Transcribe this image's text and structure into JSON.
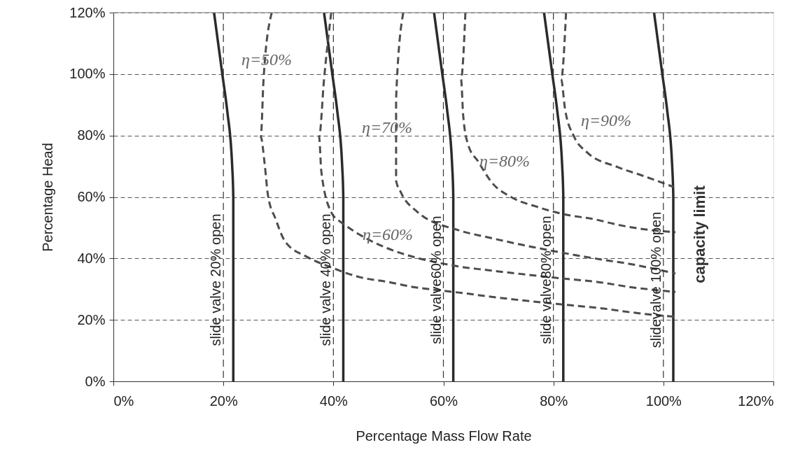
{
  "chart_data": {
    "type": "line",
    "xlabel": "Percentage Mass Flow Rate",
    "ylabel": "Percentage Head",
    "xlim": [
      0,
      120
    ],
    "ylim": [
      0,
      120
    ],
    "xticks": [
      {
        "value": 0,
        "label": "0%"
      },
      {
        "value": 20,
        "label": "20%"
      },
      {
        "value": 40,
        "label": "40%"
      },
      {
        "value": 60,
        "label": "60%"
      },
      {
        "value": 80,
        "label": "80%"
      },
      {
        "value": 100,
        "label": "100%"
      },
      {
        "value": 120,
        "label": "120%"
      }
    ],
    "yticks": [
      {
        "value": 0,
        "label": "0%"
      },
      {
        "value": 20,
        "label": "20%"
      },
      {
        "value": 40,
        "label": "40%"
      },
      {
        "value": 60,
        "label": "60%"
      },
      {
        "value": 80,
        "label": "80%"
      },
      {
        "value": 100,
        "label": "100%"
      },
      {
        "value": 120,
        "label": "120%"
      }
    ],
    "grid": "y",
    "series": [
      {
        "color": "#2b2b2b",
        "line_style": "solid",
        "x": [
          21.8,
          21.8,
          21.6,
          20.7,
          19.8,
          18.3
        ],
        "values": [
          0,
          60,
          70,
          88,
          100,
          120
        ]
      },
      {
        "color": "#2b2b2b",
        "line_style": "solid",
        "x": [
          41.8,
          41.8,
          41.6,
          40.7,
          39.8,
          38.3
        ],
        "values": [
          0,
          60,
          70,
          88,
          100,
          120
        ]
      },
      {
        "color": "#2b2b2b",
        "line_style": "solid",
        "x": [
          61.8,
          61.8,
          61.6,
          60.7,
          59.8,
          58.3
        ],
        "values": [
          0,
          60,
          70,
          88,
          100,
          120
        ]
      },
      {
        "color": "#2b2b2b",
        "line_style": "solid",
        "x": [
          81.8,
          81.8,
          81.6,
          80.7,
          79.8,
          78.3
        ],
        "values": [
          0,
          60,
          70,
          88,
          100,
          120
        ]
      },
      {
        "color": "#2b2b2b",
        "line_style": "solid",
        "x": [
          101.8,
          101.8,
          101.6,
          100.7,
          99.8,
          98.3
        ],
        "values": [
          0,
          60,
          70,
          88,
          100,
          120
        ]
      },
      {
        "color": "#4d4d4d",
        "line_style": "dashed",
        "x": [
          28.8,
          27.3,
          26.8,
          27.5,
          28.1,
          29.5,
          31.2,
          35.2,
          39.6,
          44.8,
          50.1,
          54.5,
          59.3,
          63.2,
          68.8,
          74.1,
          82.9,
          89.1,
          93.9,
          102.2
        ],
        "values": [
          120,
          98.3,
          79.5,
          70.8,
          60.6,
          52.8,
          45.6,
          40.5,
          37.1,
          33.9,
          32.3,
          30.7,
          29.6,
          28.8,
          27.5,
          26.4,
          24.8,
          23.7,
          22.5,
          21.0
        ]
      },
      {
        "color": "#4d4d4d",
        "line_style": "dashed",
        "x": [
          39.6,
          38.3,
          37.4,
          37.8,
          39.6,
          41.3,
          62.7,
          68.0,
          73.3,
          81.5,
          88.2,
          93.9,
          102.2
        ],
        "values": [
          120,
          98.3,
          79.5,
          68.4,
          55.1,
          51.9,
          37.4,
          36.2,
          35.1,
          33.5,
          32.3,
          30.7,
          29.1
        ]
      },
      {
        "color": "#4d4d4d",
        "line_style": "dashed",
        "x": [
          52.7,
          51.4,
          51.4,
          52.3,
          55.3,
          62.7,
          68.0,
          74.1,
          82.1,
          88.2,
          93.9,
          102.2
        ],
        "values": [
          120,
          92,
          65.3,
          61.4,
          55.1,
          49.2,
          46.9,
          44.5,
          41.7,
          39.8,
          38.2,
          35.1
        ]
      },
      {
        "color": "#4d4d4d",
        "line_style": "dashed",
        "x": [
          64.0,
          63.2,
          63.6,
          64.5,
          66.3,
          68.9,
          72.4,
          77.2,
          82.1,
          87.3,
          92.1,
          96.1,
          102.2
        ],
        "values": [
          120,
          98.3,
          86.5,
          77,
          71.6,
          64.5,
          59.9,
          56.7,
          54.3,
          52.8,
          50.8,
          49.6,
          48.5
        ]
      },
      {
        "color": "#4d4d4d",
        "line_style": "dashed",
        "x": [
          82.3,
          81.4,
          82.1,
          83.8,
          86.0,
          91.7,
          96.1,
          101.8
        ],
        "values": [
          120,
          98.3,
          88.8,
          79.5,
          74.7,
          69.7,
          67,
          63.3
        ]
      }
    ],
    "ref_lines": [
      {
        "axis": "x",
        "value": 20,
        "label": "slide valve 20% open",
        "color": "#333333",
        "line_style": "dashed"
      },
      {
        "axis": "x",
        "value": 40,
        "label": "slide valve 40% open",
        "color": "#333333",
        "line_style": "dashed"
      },
      {
        "axis": "x",
        "value": 60,
        "label": "slide valve60% open",
        "color": "#333333",
        "line_style": "dashed"
      },
      {
        "axis": "x",
        "value": 80,
        "label": "slide valve80% open",
        "color": "#333333",
        "line_style": "dashed"
      },
      {
        "axis": "x",
        "value": 100,
        "label": "slidevalve 100% open",
        "color": "#333333",
        "line_style": "dashed"
      }
    ],
    "annotations": [
      "η=50%",
      "η=70%",
      "η=60%",
      "η=80%",
      "η=90%",
      "capacity limit"
    ]
  }
}
